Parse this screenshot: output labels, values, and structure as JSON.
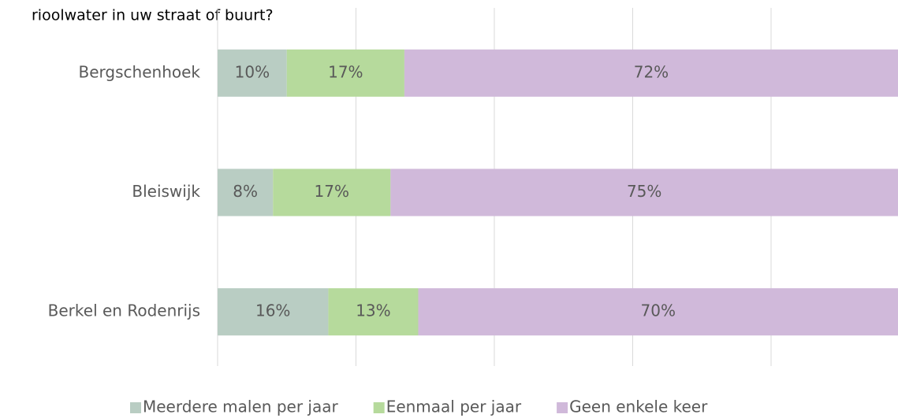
{
  "chart_data": {
    "type": "stacked_bar_horizontal",
    "title": "rioolwater in uw straat of buurt?",
    "categories": [
      "Bergschenhoek",
      "Bleiswijk",
      "Berkel en Rodenrijs"
    ],
    "series": [
      {
        "name": "Meerdere malen per jaar",
        "color": "#b9cdc3",
        "values": [
          10,
          8,
          16
        ],
        "value_labels": [
          "10%",
          "8%",
          "16%"
        ]
      },
      {
        "name": "Eenmaal per jaar",
        "color": "#b6da9c",
        "values": [
          17,
          17,
          13
        ],
        "value_labels": [
          "17%",
          "17%",
          "13%"
        ]
      },
      {
        "name": "Geen enkele keer",
        "color": "#d0b9da",
        "values": [
          72,
          75,
          70
        ],
        "value_labels": [
          "72%",
          "75%",
          "70%"
        ]
      }
    ],
    "xlim": [
      0,
      100
    ],
    "xticks": [
      0,
      20,
      40,
      60,
      80,
      100
    ],
    "grid": true,
    "legend": "bottom"
  }
}
